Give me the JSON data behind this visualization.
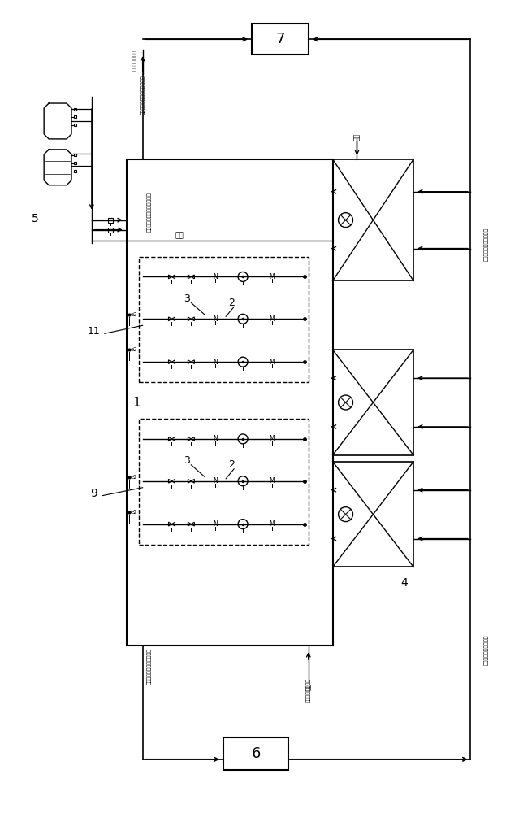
{
  "bg_color": "#ffffff",
  "fig_width": 6.39,
  "fig_height": 10.0,
  "dpi": 100,
  "chinese": {
    "backwash_out": "反洗水外排外图",
    "cold_supply_out": "制冷站用净循环冷却水供出水",
    "cold_return": "制冷站用净循环冷却回水",
    "pipe": "管道",
    "main_supply_out": "主机房净循环冷却水供出水",
    "water_source": "净循环冷却水水源",
    "main_return": "主机房净循环冷協回水",
    "fill_water": "补水"
  }
}
